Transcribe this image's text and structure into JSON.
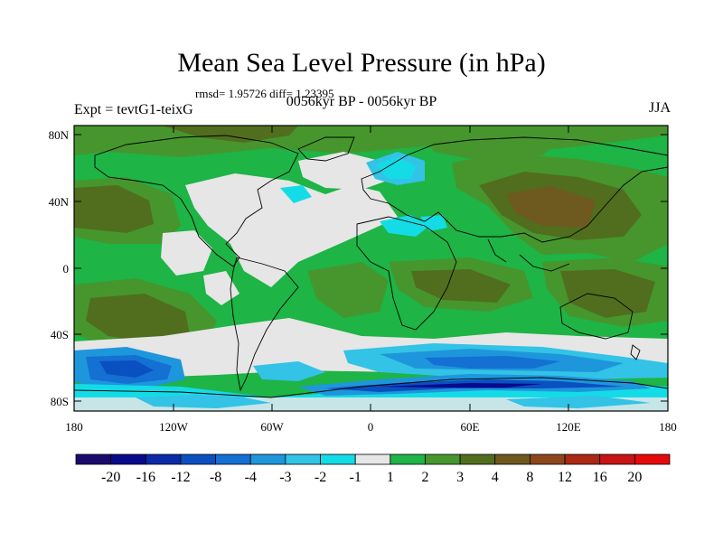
{
  "title": "Mean Sea Level Pressure (in hPa)",
  "stats": "rmsd= 1.95726 diff= 1.23395",
  "subtitle": "0056kyr BP - 0056kyr BP",
  "experiment": "Expt = tevtG1-teixG",
  "season": "JJA",
  "lat_ticks": [
    "80N",
    "40N",
    "0",
    "40S",
    "80S"
  ],
  "lon_ticks": [
    "180",
    "120W",
    "60W",
    "0",
    "60E",
    "120E",
    "180"
  ],
  "colorbar": {
    "labels": [
      "-20",
      "-16",
      "-12",
      "-8",
      "-4",
      "-3",
      "-2",
      "-1",
      "1",
      "2",
      "3",
      "4",
      "8",
      "12",
      "16",
      "20"
    ],
    "colors": [
      "#1a0a6e",
      "#0a0a8c",
      "#0a2aa8",
      "#0a50c0",
      "#1470d2",
      "#1e96dc",
      "#32c3e6",
      "#14dce6",
      "#e6e6e6",
      "#1eb446",
      "#46962d",
      "#506e1e",
      "#6e5a1e",
      "#8c461e",
      "#aa2814",
      "#c81414",
      "#e60a0a"
    ]
  }
}
